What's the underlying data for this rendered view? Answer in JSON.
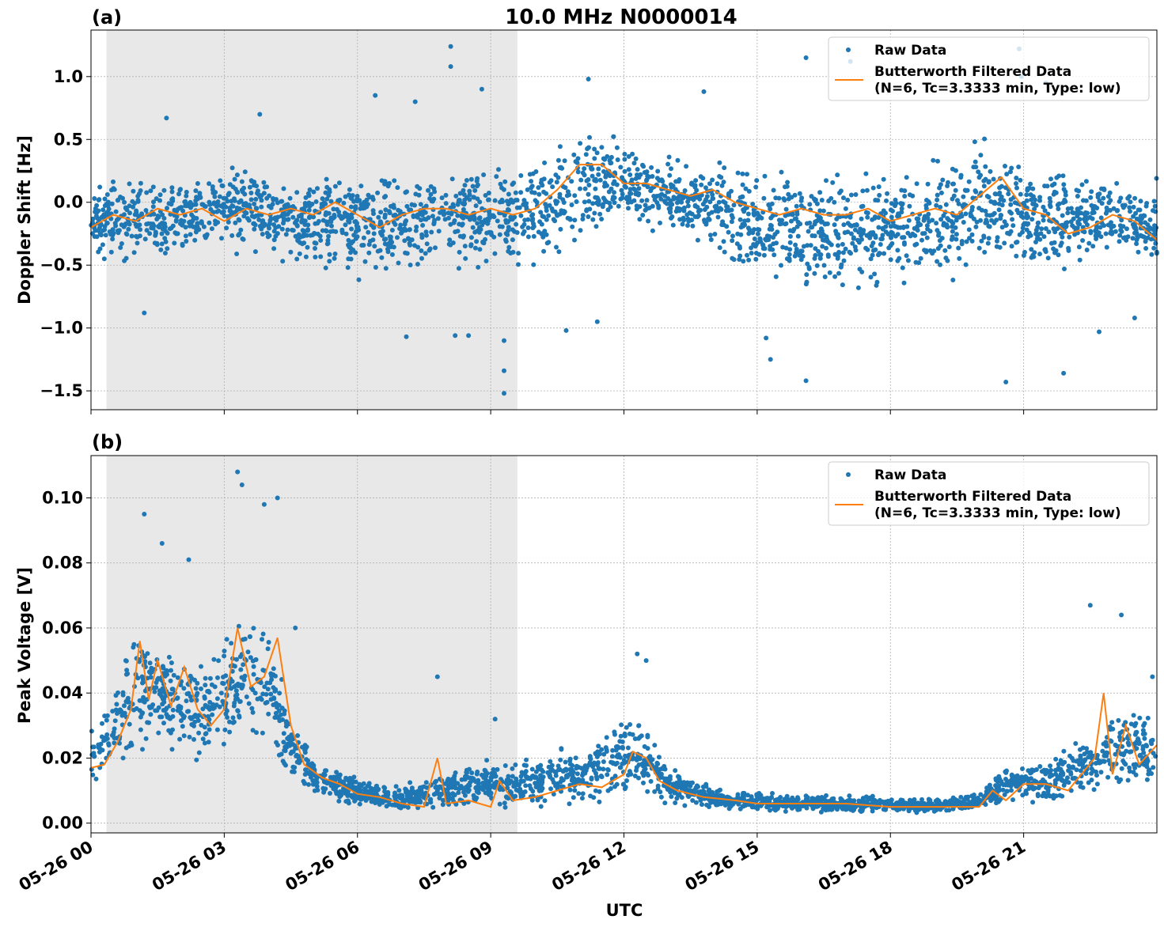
{
  "figure": {
    "suptitle": "10.0 MHz N0000014",
    "xlabel": "UTC",
    "x_ticks": [
      "05-26 00",
      "05-26 03",
      "05-26 06",
      "05-26 09",
      "05-26 12",
      "05-26 15",
      "05-26 18",
      "05-26 21"
    ],
    "shaded_span_hours": [
      0.35,
      9.6
    ],
    "colors": {
      "raw": "#1f77b4",
      "filtered": "#ff7f0e",
      "shade": "#e8e8e8",
      "grid": "#b0b0b0"
    }
  },
  "chart_data": [
    {
      "type": "scatter",
      "panel_label": "(a)",
      "ylabel": "Doppler Shift [Hz]",
      "xlim_hours": [
        0,
        24
      ],
      "ylim": [
        -1.65,
        1.37
      ],
      "y_ticks": [
        1.0,
        0.5,
        0.0,
        -0.5,
        -1.0,
        -1.5
      ],
      "y_tick_labels": [
        "1.0",
        "0.5",
        "0.0",
        "−0.5",
        "−1.0",
        "−1.5"
      ],
      "grid": true,
      "legend": {
        "position": "top-right",
        "entries": [
          "Raw Data",
          "Butterworth Filtered Data",
          "(N=6, Tc=3.3333 min, Type: low)"
        ]
      },
      "series": [
        {
          "name": "Raw Data",
          "kind": "points",
          "envelope_x_hours": [
            0,
            1,
            2,
            3,
            4,
            5,
            6,
            7,
            8,
            9,
            10,
            11,
            12,
            13,
            14,
            15,
            16,
            17,
            18,
            19,
            20,
            21,
            22,
            23,
            24
          ],
          "envelope_low": [
            -0.5,
            -0.55,
            -0.5,
            -0.45,
            -0.5,
            -0.55,
            -0.7,
            -0.7,
            -0.55,
            -0.6,
            -0.6,
            -0.4,
            -0.2,
            -0.3,
            -0.5,
            -0.7,
            -0.8,
            -0.75,
            -0.8,
            -0.8,
            -0.6,
            -0.6,
            -0.6,
            -0.5,
            -0.6
          ],
          "envelope_high": [
            0.2,
            0.3,
            0.25,
            0.35,
            0.3,
            0.25,
            0.35,
            0.3,
            0.4,
            0.35,
            0.4,
            0.7,
            0.55,
            0.4,
            0.4,
            0.35,
            0.4,
            0.3,
            0.35,
            0.4,
            0.6,
            0.35,
            0.3,
            0.3,
            0.25
          ],
          "outliers": [
            [
              0.3,
              -0.45
            ],
            [
              1.2,
              -0.88
            ],
            [
              1.7,
              0.67
            ],
            [
              3.8,
              0.7
            ],
            [
              6.4,
              0.85
            ],
            [
              7.1,
              -1.07
            ],
            [
              7.3,
              0.8
            ],
            [
              8.1,
              1.24
            ],
            [
              8.1,
              1.08
            ],
            [
              8.2,
              -1.06
            ],
            [
              8.5,
              -1.06
            ],
            [
              8.8,
              0.9
            ],
            [
              9.3,
              -1.34
            ],
            [
              9.3,
              -1.52
            ],
            [
              9.3,
              -1.1
            ],
            [
              10.7,
              -1.02
            ],
            [
              11.2,
              0.98
            ],
            [
              11.4,
              -0.95
            ],
            [
              13.8,
              0.88
            ],
            [
              15.2,
              -1.08
            ],
            [
              15.3,
              -1.25
            ],
            [
              16.1,
              -1.42
            ],
            [
              16.1,
              1.15
            ],
            [
              17.1,
              1.12
            ],
            [
              20.6,
              -1.43
            ],
            [
              20.9,
              1.22
            ],
            [
              20.95,
              1.0
            ],
            [
              21.5,
              0.95
            ],
            [
              21.9,
              -1.36
            ],
            [
              22.7,
              -1.03
            ],
            [
              23.5,
              -0.92
            ]
          ]
        },
        {
          "name": "Butterworth Filtered Data",
          "kind": "line",
          "x_hours": [
            0,
            0.5,
            1,
            1.5,
            2,
            2.5,
            3,
            3.5,
            4,
            4.5,
            5,
            5.5,
            6,
            6.5,
            7,
            7.5,
            8,
            8.5,
            9,
            9.5,
            10,
            10.5,
            11,
            11.5,
            12,
            12.5,
            13,
            13.5,
            14,
            14.5,
            15,
            15.5,
            16,
            16.5,
            17,
            17.5,
            18,
            18.5,
            19,
            19.5,
            20,
            20.5,
            21,
            21.5,
            22,
            22.5,
            23,
            23.5,
            24
          ],
          "y": [
            -0.2,
            -0.1,
            -0.15,
            -0.05,
            -0.1,
            -0.05,
            -0.15,
            -0.05,
            -0.1,
            -0.05,
            -0.1,
            0.0,
            -0.1,
            -0.2,
            -0.1,
            -0.05,
            -0.05,
            -0.1,
            -0.05,
            -0.1,
            -0.05,
            0.1,
            0.3,
            0.3,
            0.15,
            0.15,
            0.1,
            0.05,
            0.1,
            0.0,
            -0.05,
            -0.1,
            -0.05,
            -0.1,
            -0.1,
            -0.05,
            -0.15,
            -0.1,
            -0.05,
            -0.1,
            0.05,
            0.2,
            -0.05,
            -0.1,
            -0.25,
            -0.2,
            -0.1,
            -0.15,
            -0.3
          ]
        }
      ]
    },
    {
      "type": "scatter",
      "panel_label": "(b)",
      "ylabel": "Peak Voltage [V]",
      "xlim_hours": [
        0,
        24
      ],
      "ylim": [
        -0.003,
        0.113
      ],
      "y_ticks": [
        0.1,
        0.08,
        0.06,
        0.04,
        0.02,
        0.0
      ],
      "y_tick_labels": [
        "0.10",
        "0.08",
        "0.06",
        "0.04",
        "0.02",
        "0.00"
      ],
      "grid": true,
      "legend": {
        "position": "top-right",
        "entries": [
          "Raw Data",
          "Butterworth Filtered Data",
          "(N=6, Tc=3.3333 min, Type: low)"
        ]
      },
      "series": [
        {
          "name": "Raw Data",
          "kind": "points",
          "envelope_x_hours": [
            0,
            0.5,
            1,
            1.5,
            2,
            2.5,
            3,
            3.5,
            4,
            4.5,
            5,
            5.5,
            6,
            6.5,
            7,
            7.5,
            8,
            8.5,
            9,
            9.5,
            10,
            10.5,
            11,
            11.5,
            12,
            12.5,
            13,
            13.5,
            14,
            15,
            16,
            17,
            18,
            19,
            20,
            20.5,
            21,
            21.5,
            22,
            22.5,
            23,
            23.5,
            24
          ],
          "envelope_low": [
            0.008,
            0.012,
            0.018,
            0.02,
            0.02,
            0.018,
            0.022,
            0.025,
            0.022,
            0.01,
            0.006,
            0.005,
            0.004,
            0.003,
            0.003,
            0.003,
            0.003,
            0.003,
            0.003,
            0.003,
            0.003,
            0.003,
            0.004,
            0.005,
            0.006,
            0.006,
            0.004,
            0.004,
            0.003,
            0.003,
            0.003,
            0.003,
            0.003,
            0.003,
            0.003,
            0.004,
            0.005,
            0.006,
            0.006,
            0.008,
            0.01,
            0.01,
            0.008
          ],
          "envelope_high": [
            0.035,
            0.04,
            0.065,
            0.06,
            0.055,
            0.05,
            0.06,
            0.065,
            0.065,
            0.035,
            0.025,
            0.018,
            0.016,
            0.013,
            0.012,
            0.015,
            0.018,
            0.02,
            0.02,
            0.02,
            0.022,
            0.025,
            0.024,
            0.03,
            0.035,
            0.032,
            0.02,
            0.015,
            0.012,
            0.01,
            0.009,
            0.009,
            0.008,
            0.008,
            0.01,
            0.018,
            0.02,
            0.02,
            0.025,
            0.028,
            0.035,
            0.04,
            0.035
          ],
          "outliers": [
            [
              1.2,
              0.095
            ],
            [
              1.6,
              0.086
            ],
            [
              2.2,
              0.081
            ],
            [
              3.3,
              0.108
            ],
            [
              3.4,
              0.104
            ],
            [
              3.9,
              0.098
            ],
            [
              4.2,
              0.1
            ],
            [
              4.6,
              0.06
            ],
            [
              7.8,
              0.045
            ],
            [
              9.1,
              0.032
            ],
            [
              12.3,
              0.052
            ],
            [
              12.5,
              0.05
            ],
            [
              22.5,
              0.067
            ],
            [
              23.2,
              0.064
            ],
            [
              23.9,
              0.045
            ]
          ]
        },
        {
          "name": "Butterworth Filtered Data",
          "kind": "line",
          "x_hours": [
            0,
            0.3,
            0.6,
            0.9,
            1.1,
            1.3,
            1.5,
            1.8,
            2.1,
            2.4,
            2.7,
            3.0,
            3.3,
            3.6,
            3.9,
            4.2,
            4.5,
            4.8,
            5.2,
            5.6,
            6.0,
            6.5,
            7.0,
            7.5,
            7.8,
            8.0,
            8.5,
            9.0,
            9.2,
            9.5,
            10.0,
            10.5,
            11.0,
            11.5,
            12.0,
            12.2,
            12.5,
            12.8,
            13.2,
            13.8,
            14.5,
            15.0,
            16.0,
            17.0,
            18.0,
            19.0,
            20.0,
            20.3,
            20.6,
            21.0,
            21.5,
            22.0,
            22.3,
            22.6,
            22.8,
            23.0,
            23.3,
            23.6,
            24.0
          ],
          "y": [
            0.017,
            0.018,
            0.025,
            0.035,
            0.056,
            0.038,
            0.05,
            0.036,
            0.048,
            0.035,
            0.03,
            0.035,
            0.06,
            0.042,
            0.045,
            0.057,
            0.03,
            0.018,
            0.014,
            0.012,
            0.009,
            0.008,
            0.006,
            0.005,
            0.02,
            0.006,
            0.007,
            0.005,
            0.013,
            0.007,
            0.008,
            0.01,
            0.012,
            0.011,
            0.015,
            0.022,
            0.02,
            0.013,
            0.01,
            0.008,
            0.007,
            0.006,
            0.006,
            0.006,
            0.005,
            0.005,
            0.005,
            0.01,
            0.007,
            0.012,
            0.012,
            0.01,
            0.015,
            0.02,
            0.04,
            0.015,
            0.03,
            0.018,
            0.024
          ]
        }
      ]
    }
  ]
}
